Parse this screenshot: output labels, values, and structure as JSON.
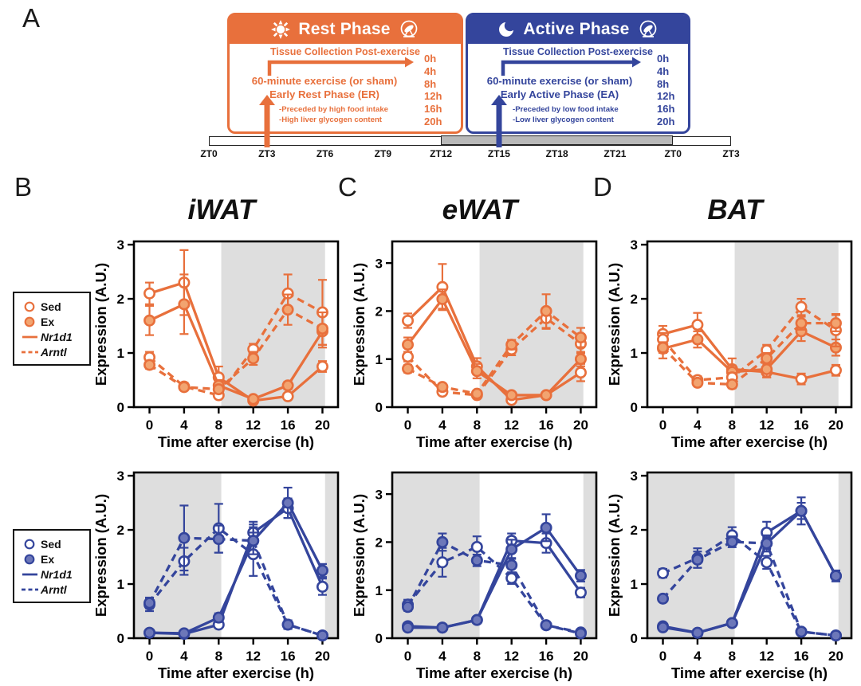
{
  "colors": {
    "orange": "#E8703C",
    "orange_fill": "#F2A470",
    "blue": "#34459C",
    "blue_fill": "#6C77B9",
    "band_gray": "#DEDEDE",
    "timeline_gray": "#B9B9B9"
  },
  "panel_letters": {
    "a": "A",
    "b": "B",
    "c": "C",
    "d": "D"
  },
  "schematic": {
    "rest": {
      "title": "Rest Phase",
      "collection_label": "Tissue Collection Post-exercise",
      "times": [
        "0h",
        "4h",
        "8h",
        "12h",
        "16h",
        "20h"
      ],
      "exercise_line1": "60-minute exercise (or sham)",
      "exercise_line2": "Early Rest Phase (ER)",
      "note1": "-Preceded by high food intake",
      "note2": "-High liver glycogen content"
    },
    "active": {
      "title": "Active Phase",
      "collection_label": "Tissue Collection Post-exercise",
      "times": [
        "0h",
        "4h",
        "8h",
        "12h",
        "16h",
        "20h"
      ],
      "exercise_line1": "60-minute exercise (or sham)",
      "exercise_line2": "Early Active Phase (EA)",
      "note1": "-Preceded by low food intake",
      "note2": "-Low liver glycogen content"
    },
    "timeline": {
      "zt_labels": [
        "ZT0",
        "ZT3",
        "ZT6",
        "ZT9",
        "ZT12",
        "ZT15",
        "ZT18",
        "ZT21",
        "ZT0",
        "ZT3"
      ],
      "gray_from_label_index": 4,
      "gray_to_label_index": 8
    }
  },
  "legend": {
    "items": [
      {
        "label": "Sed",
        "symbol": "open-circle"
      },
      {
        "label": "Ex",
        "symbol": "filled-circle"
      },
      {
        "label": "Nr1d1",
        "symbol": "solid-line"
      },
      {
        "label": "Arntl",
        "symbol": "dashed-line"
      }
    ]
  },
  "chart_data": [
    {
      "id": "iwat-rest",
      "type": "line",
      "title": "iWAT",
      "phase": "Early Rest Phase",
      "x": [
        0,
        4,
        8,
        12,
        16,
        20
      ],
      "xlabel": "Time after exercise (h)",
      "ylabel": "Expression (A.U.)",
      "xticks": [
        0,
        4,
        8,
        12,
        16,
        20
      ],
      "yticks": [
        0,
        1,
        2,
        3
      ],
      "xlim": [
        -1.8,
        21.8
      ],
      "ylim": [
        0,
        3.06
      ],
      "shaded_bands": [
        [
          8.3,
          20.3
        ]
      ],
      "series": [
        {
          "name": "Nr1d1 Sed",
          "line": "solid",
          "marker": "open",
          "values": [
            2.1,
            2.3,
            0.55,
            0.12,
            0.2,
            0.75
          ],
          "errors": [
            0.2,
            0.6,
            0.2,
            0.04,
            0.06,
            0.1
          ]
        },
        {
          "name": "Nr1d1 Ex",
          "line": "solid",
          "marker": "filled",
          "values": [
            1.6,
            1.9,
            0.4,
            0.15,
            0.4,
            1.4
          ],
          "errors": [
            0.27,
            0.55,
            0.1,
            0.05,
            0.07,
            0.3
          ]
        },
        {
          "name": "Arntl Sed",
          "line": "dashed",
          "marker": "open",
          "values": [
            0.92,
            0.38,
            0.22,
            1.07,
            2.1,
            1.75
          ],
          "errors": [
            0.1,
            0.07,
            0.05,
            0.1,
            0.35,
            0.6
          ]
        },
        {
          "name": "Arntl Ex",
          "line": "dashed",
          "marker": "filled",
          "values": [
            0.78,
            0.37,
            0.33,
            0.9,
            1.8,
            1.45
          ],
          "errors": [
            0.07,
            0.06,
            0.06,
            0.12,
            0.28,
            0.3
          ]
        }
      ]
    },
    {
      "id": "ewat-rest",
      "type": "line",
      "title": "eWAT",
      "phase": "Early Rest Phase",
      "x": [
        0,
        4,
        8,
        12,
        16,
        20
      ],
      "xlabel": "Time after exercise (h)",
      "ylabel": "Expression (A.U.)",
      "xticks": [
        0,
        4,
        8,
        12,
        16,
        20
      ],
      "yticks": [
        0,
        1,
        2,
        3
      ],
      "xlim": [
        -1.8,
        21.8
      ],
      "ylim": [
        0,
        3.45
      ],
      "shaded_bands": [
        [
          8.3,
          20.3
        ]
      ],
      "series": [
        {
          "name": "Nr1d1 Sed",
          "line": "solid",
          "marker": "open",
          "values": [
            1.8,
            2.5,
            0.85,
            0.15,
            0.25,
            0.72
          ],
          "errors": [
            0.15,
            0.48,
            0.17,
            0.05,
            0.05,
            0.18
          ]
        },
        {
          "name": "Nr1d1 Ex",
          "line": "solid",
          "marker": "filled",
          "values": [
            1.3,
            2.25,
            0.75,
            0.25,
            0.25,
            1.0
          ],
          "errors": [
            0.15,
            0.2,
            0.15,
            0.06,
            0.05,
            0.15
          ]
        },
        {
          "name": "Arntl Sed",
          "line": "dashed",
          "marker": "open",
          "values": [
            1.05,
            0.32,
            0.25,
            1.2,
            1.85,
            1.32
          ],
          "errors": [
            0.1,
            0.05,
            0.05,
            0.12,
            0.22,
            0.2
          ]
        },
        {
          "name": "Arntl Ex",
          "line": "dashed",
          "marker": "filled",
          "values": [
            0.8,
            0.42,
            0.28,
            1.3,
            2.0,
            1.45
          ],
          "errors": [
            0.08,
            0.07,
            0.05,
            0.1,
            0.35,
            0.2
          ]
        }
      ]
    },
    {
      "id": "bat-rest",
      "type": "line",
      "title": "BAT",
      "phase": "Early Rest Phase",
      "x": [
        0,
        4,
        8,
        12,
        16,
        20
      ],
      "xlabel": "Time after exercise (h)",
      "ylabel": "Expression (A.U.)",
      "xticks": [
        0,
        4,
        8,
        12,
        16,
        20
      ],
      "yticks": [
        0,
        1,
        2,
        3
      ],
      "xlim": [
        -1.8,
        21.8
      ],
      "ylim": [
        0,
        3.06
      ],
      "shaded_bands": [
        [
          8.3,
          20.3
        ]
      ],
      "series": [
        {
          "name": "Nr1d1 Sed",
          "line": "solid",
          "marker": "open",
          "values": [
            1.35,
            1.52,
            0.7,
            0.65,
            0.52,
            0.68
          ],
          "errors": [
            0.15,
            0.22,
            0.2,
            0.1,
            0.1,
            0.1
          ]
        },
        {
          "name": "Nr1d1 Ex",
          "line": "solid",
          "marker": "filled",
          "values": [
            1.08,
            1.25,
            0.65,
            0.7,
            1.4,
            1.1
          ],
          "errors": [
            0.18,
            0.15,
            0.12,
            0.15,
            0.18,
            0.15
          ]
        },
        {
          "name": "Arntl Sed",
          "line": "dashed",
          "marker": "open",
          "values": [
            1.25,
            0.5,
            0.55,
            1.05,
            1.85,
            1.42
          ],
          "errors": [
            0.12,
            0.07,
            0.08,
            0.1,
            0.15,
            0.3
          ]
        },
        {
          "name": "Arntl Ex",
          "line": "dashed",
          "marker": "filled",
          "values": [
            1.1,
            0.45,
            0.42,
            0.9,
            1.55,
            1.55
          ],
          "errors": [
            0.1,
            0.06,
            0.07,
            0.1,
            0.12,
            0.15
          ]
        }
      ]
    },
    {
      "id": "iwat-active",
      "type": "line",
      "title": "",
      "phase": "Early Active Phase",
      "x": [
        0,
        4,
        8,
        12,
        16,
        20
      ],
      "xlabel": "Time after exercise (h)",
      "ylabel": "Expression (A.U.)",
      "xticks": [
        0,
        4,
        8,
        12,
        16,
        20
      ],
      "yticks": [
        0,
        1,
        2,
        3
      ],
      "xlim": [
        -1.8,
        21.8
      ],
      "ylim": [
        0,
        3.06
      ],
      "shaded_bands": [
        [
          -1.8,
          8.3
        ],
        [
          20.3,
          21.8
        ]
      ],
      "series": [
        {
          "name": "Nr1d1 Sed",
          "line": "solid",
          "marker": "open",
          "values": [
            0.1,
            0.08,
            0.25,
            1.95,
            2.4,
            0.95
          ],
          "errors": [
            0.04,
            0.03,
            0.05,
            0.2,
            0.18,
            0.15
          ]
        },
        {
          "name": "Nr1d1 Ex",
          "line": "solid",
          "marker": "filled",
          "values": [
            0.1,
            0.09,
            0.38,
            1.8,
            2.5,
            1.25
          ],
          "errors": [
            0.04,
            0.03,
            0.08,
            0.3,
            0.28,
            0.12
          ]
        },
        {
          "name": "Arntl Sed",
          "line": "dashed",
          "marker": "open",
          "values": [
            0.62,
            1.42,
            2.03,
            1.55,
            0.25,
            0.05
          ],
          "errors": [
            0.12,
            0.25,
            0.45,
            0.4,
            0.08,
            0.03
          ]
        },
        {
          "name": "Arntl Ex",
          "line": "dashed",
          "marker": "filled",
          "values": [
            0.65,
            1.85,
            1.83,
            1.8,
            0.25,
            0.05
          ],
          "errors": [
            0.1,
            0.6,
            0.25,
            0.25,
            0.08,
            0.03
          ]
        }
      ]
    },
    {
      "id": "ewat-active",
      "type": "line",
      "title": "",
      "phase": "Early Active Phase",
      "x": [
        0,
        4,
        8,
        12,
        16,
        20
      ],
      "xlabel": "Time after exercise (h)",
      "ylabel": "Expression (A.U.)",
      "xticks": [
        0,
        4,
        8,
        12,
        16,
        20
      ],
      "yticks": [
        0,
        1,
        2,
        3
      ],
      "xlim": [
        -1.8,
        21.8
      ],
      "ylim": [
        0,
        3.45
      ],
      "shaded_bands": [
        [
          -1.8,
          8.3
        ],
        [
          20.3,
          21.8
        ]
      ],
      "series": [
        {
          "name": "Nr1d1 Sed",
          "line": "solid",
          "marker": "open",
          "values": [
            0.25,
            0.22,
            0.38,
            2.03,
            1.98,
            0.95
          ],
          "errors": [
            0.05,
            0.04,
            0.06,
            0.15,
            0.2,
            0.1
          ]
        },
        {
          "name": "Nr1d1 Ex",
          "line": "solid",
          "marker": "filled",
          "values": [
            0.22,
            0.22,
            0.38,
            1.85,
            2.3,
            1.3
          ],
          "errors": [
            0.05,
            0.04,
            0.06,
            0.2,
            0.28,
            0.12
          ]
        },
        {
          "name": "Arntl Sed",
          "line": "dashed",
          "marker": "open",
          "values": [
            0.7,
            1.58,
            1.9,
            1.25,
            0.27,
            0.12
          ],
          "errors": [
            0.1,
            0.3,
            0.22,
            0.12,
            0.06,
            0.04
          ]
        },
        {
          "name": "Arntl Ex",
          "line": "dashed",
          "marker": "filled",
          "values": [
            0.65,
            2.0,
            1.62,
            1.52,
            0.27,
            0.1
          ],
          "errors": [
            0.08,
            0.18,
            0.12,
            0.15,
            0.06,
            0.04
          ]
        }
      ]
    },
    {
      "id": "bat-active",
      "type": "line",
      "title": "",
      "phase": "Early Active Phase",
      "x": [
        0,
        4,
        8,
        12,
        16,
        20
      ],
      "xlabel": "Time after exercise (h)",
      "ylabel": "Expression (A.U.)",
      "xticks": [
        0,
        4,
        8,
        12,
        16,
        20
      ],
      "yticks": [
        0,
        1,
        2,
        3
      ],
      "xlim": [
        -1.8,
        21.8
      ],
      "ylim": [
        0,
        3.06
      ],
      "shaded_bands": [
        [
          -1.8,
          8.3
        ],
        [
          20.3,
          21.8
        ]
      ],
      "series": [
        {
          "name": "Nr1d1 Sed",
          "line": "solid",
          "marker": "open",
          "values": [
            0.22,
            0.1,
            0.28,
            1.95,
            2.35,
            1.15
          ],
          "errors": [
            0.05,
            0.03,
            0.05,
            0.2,
            0.25,
            0.1
          ]
        },
        {
          "name": "Nr1d1 Ex",
          "line": "solid",
          "marker": "filled",
          "values": [
            0.2,
            0.1,
            0.28,
            1.75,
            2.35,
            1.15
          ],
          "errors": [
            0.05,
            0.03,
            0.05,
            0.15,
            0.15,
            0.1
          ]
        },
        {
          "name": "Arntl Sed",
          "line": "dashed",
          "marker": "open",
          "values": [
            1.2,
            1.48,
            1.9,
            1.4,
            0.12,
            0.05
          ],
          "errors": [
            0.08,
            0.18,
            0.15,
            0.12,
            0.05,
            0.03
          ]
        },
        {
          "name": "Arntl Ex",
          "line": "dashed",
          "marker": "filled",
          "values": [
            0.73,
            1.45,
            1.78,
            1.75,
            0.12,
            0.05
          ],
          "errors": [
            0.06,
            0.15,
            0.1,
            0.1,
            0.05,
            0.03
          ]
        }
      ]
    }
  ]
}
